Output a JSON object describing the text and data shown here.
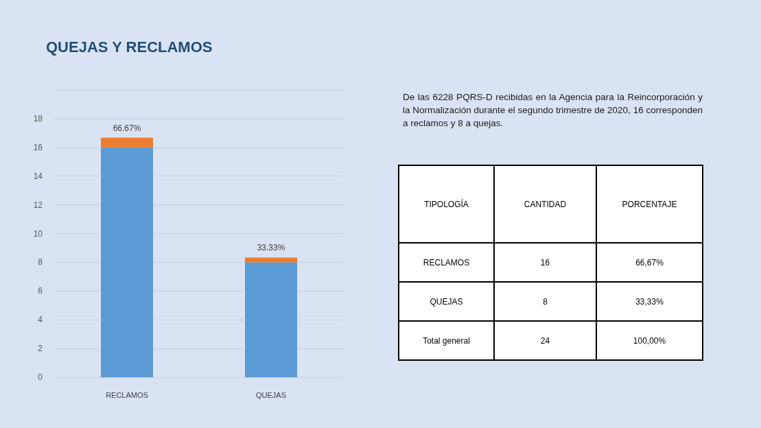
{
  "chart_data": [
    {
      "type": "bar",
      "title": "QUEJAS Y RECLAMOS",
      "categories": [
        "RECLAMOS",
        "QUEJAS"
      ],
      "stacked": true,
      "series": [
        {
          "color": "#5b9bd5",
          "values": [
            16,
            8
          ]
        },
        {
          "color": "#ed7d31",
          "values": [
            0.6667,
            0.3333
          ],
          "value_labels": [
            "66.67%",
            "33.33%"
          ]
        }
      ],
      "ylim": [
        0,
        20
      ],
      "yticks": [
        0,
        2,
        4,
        6,
        8,
        10,
        12,
        14,
        16,
        18,
        {
          "value": 20,
          "label": null
        }
      ],
      "grid": "y"
    },
    {
      "type": "other",
      "annotations": [
        "De las 6228 PQRS-D recibidas en la Agencia para la Reincorporación y la Normalización durante el segundo trimestre de 2020, 16 corresponden a reclamos y 8 a quejas.",
        "TIPOLOGÍA",
        "CANTIDAD",
        "PORCENTAJE",
        "RECLAMOS",
        "16",
        "66,67%",
        "QUEJAS",
        "8",
        "33,33%",
        "Total general",
        "24",
        "100,00%"
      ]
    }
  ]
}
